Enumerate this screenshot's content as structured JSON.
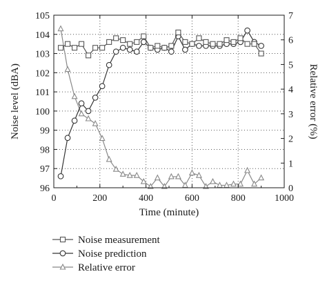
{
  "chart_data": {
    "type": "line",
    "xlabel": "Time (minute)",
    "ylabel": "Noise level (dBA)",
    "ylabel_right": "Relative error (%)",
    "xlim": [
      0,
      1000
    ],
    "ylim": [
      96,
      105
    ],
    "ylim_right": [
      0,
      7
    ],
    "xticks": [
      0,
      200,
      400,
      600,
      800,
      1000
    ],
    "yticks": [
      96,
      97,
      98,
      99,
      100,
      101,
      102,
      103,
      104,
      105
    ],
    "yticks_right": [
      0,
      1,
      2,
      3,
      4,
      5,
      6,
      7
    ],
    "grid": "dotted",
    "legend_position": "bottom",
    "series": [
      {
        "name": "Noise measurement",
        "axis": "left",
        "marker": "square",
        "color": "#555555",
        "x": [
          30,
          60,
          90,
          120,
          150,
          180,
          210,
          240,
          270,
          300,
          330,
          360,
          390,
          420,
          450,
          480,
          510,
          540,
          570,
          600,
          630,
          660,
          690,
          720,
          750,
          780,
          810,
          840,
          870,
          900
        ],
        "y": [
          103.3,
          103.5,
          103.3,
          103.5,
          102.9,
          103.3,
          103.3,
          103.6,
          103.8,
          103.7,
          103.5,
          103.6,
          103.9,
          103.3,
          103.4,
          103.3,
          103.4,
          104.1,
          103.6,
          103.5,
          103.8,
          103.6,
          103.5,
          103.5,
          103.7,
          103.6,
          103.8,
          103.5,
          103.5,
          103.0
        ]
      },
      {
        "name": "Noise prediction",
        "axis": "left",
        "marker": "circle",
        "color": "#333333",
        "x": [
          30,
          60,
          90,
          120,
          150,
          180,
          210,
          240,
          270,
          300,
          330,
          360,
          390,
          420,
          450,
          480,
          510,
          540,
          570,
          600,
          630,
          660,
          690,
          720,
          750,
          780,
          810,
          840,
          870,
          900
        ],
        "y": [
          96.6,
          98.6,
          99.5,
          100.4,
          100.0,
          100.7,
          101.3,
          102.4,
          103.1,
          103.3,
          103.2,
          103.1,
          103.6,
          103.3,
          103.2,
          103.3,
          103.1,
          103.9,
          103.2,
          103.5,
          103.4,
          103.4,
          103.4,
          103.4,
          103.5,
          103.5,
          103.6,
          104.2,
          103.6,
          103.4
        ]
      },
      {
        "name": "Relative error",
        "axis": "right",
        "marker": "triangle",
        "color": "#888888",
        "x": [
          30,
          60,
          90,
          120,
          150,
          180,
          210,
          240,
          270,
          300,
          330,
          360,
          390,
          420,
          450,
          480,
          510,
          540,
          570,
          600,
          630,
          660,
          690,
          720,
          750,
          780,
          810,
          840,
          870,
          900
        ],
        "y": [
          6.45,
          4.8,
          3.7,
          3.0,
          2.8,
          2.6,
          2.0,
          1.15,
          0.75,
          0.55,
          0.5,
          0.5,
          0.25,
          0.05,
          0.4,
          0.05,
          0.45,
          0.45,
          0.1,
          0.6,
          0.5,
          0.05,
          0.25,
          0.1,
          0.1,
          0.15,
          0.15,
          0.7,
          0.15,
          0.4
        ]
      }
    ]
  }
}
